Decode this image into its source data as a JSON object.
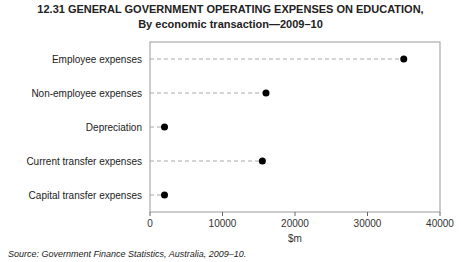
{
  "chart_data": {
    "type": "lollipop",
    "title": "12.31   GENERAL GOVERNMENT OPERATING EXPENSES ON EDUCATION,",
    "subtitle": "By economic transaction—2009–10",
    "categories": [
      "Employee expenses",
      "Non-employee expenses",
      "Depreciation",
      "Current transfer expenses",
      "Capital transfer expenses"
    ],
    "values": [
      35000,
      16000,
      2000,
      15500,
      2000
    ],
    "orientation": "horizontal",
    "color": "#000000",
    "x_label": "$m",
    "xlim": [
      0,
      40000
    ],
    "xticks": [
      0,
      10000,
      20000,
      30000,
      40000
    ],
    "grid": false,
    "source": "Source:  Government Finance Statistics, Australia, 2009–10."
  }
}
